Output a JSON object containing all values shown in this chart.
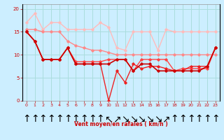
{
  "background_color": "#cceeff",
  "grid_color": "#aadddd",
  "xlabel": "Vent moyen/en rafales ( km/h )",
  "xlabel_color": "#cc0000",
  "xlim": [
    -0.5,
    23.5
  ],
  "ylim": [
    0,
    21
  ],
  "yticks": [
    0,
    5,
    10,
    15,
    20
  ],
  "xticks": [
    0,
    1,
    2,
    3,
    4,
    5,
    6,
    7,
    8,
    9,
    10,
    11,
    12,
    13,
    14,
    15,
    16,
    17,
    18,
    19,
    20,
    21,
    22,
    23
  ],
  "series": [
    {
      "x": [
        0,
        1,
        2,
        3,
        4,
        5,
        6,
        7,
        8,
        9,
        10,
        11,
        12,
        13,
        14,
        15,
        16,
        17,
        18,
        19,
        20,
        21,
        22,
        23
      ],
      "y": [
        17,
        19,
        15.5,
        17,
        17,
        15.5,
        15.5,
        15.5,
        15.5,
        17,
        16,
        11.5,
        11,
        15,
        15,
        15,
        11,
        15.5,
        15,
        15,
        15,
        15,
        15,
        15
      ],
      "color": "#ffbbbb",
      "lw": 1.0,
      "marker": "D",
      "ms": 1.8
    },
    {
      "x": [
        0,
        1,
        2,
        3,
        4,
        5,
        6,
        7,
        8,
        9,
        10,
        11,
        12,
        13,
        14,
        15,
        16,
        17,
        18,
        19,
        20,
        21,
        22,
        23
      ],
      "y": [
        15.5,
        15.5,
        15,
        15,
        15,
        13,
        12,
        11.5,
        11,
        11,
        10.5,
        10,
        10,
        10,
        10,
        10,
        10,
        10,
        10,
        10,
        10,
        10,
        10,
        10
      ],
      "color": "#ff8888",
      "lw": 1.0,
      "marker": "D",
      "ms": 1.8
    },
    {
      "x": [
        0,
        1,
        2,
        3,
        4,
        5,
        6,
        7,
        8,
        9,
        10,
        11,
        12,
        13,
        14,
        15,
        16,
        17,
        18,
        19,
        20,
        21,
        22,
        23
      ],
      "y": [
        15,
        13,
        9,
        9,
        9,
        11.5,
        8.5,
        8.5,
        8.5,
        8.5,
        9,
        9,
        9,
        6.5,
        9,
        9,
        9,
        9,
        6.5,
        7,
        7,
        7,
        7,
        11.5
      ],
      "color": "#ff4444",
      "lw": 1.0,
      "marker": "D",
      "ms": 1.8
    },
    {
      "x": [
        0,
        1,
        2,
        3,
        4,
        5,
        6,
        7,
        8,
        9,
        10,
        11,
        12,
        13,
        14,
        15,
        16,
        17,
        18,
        19,
        20,
        21,
        22,
        23
      ],
      "y": [
        15,
        13,
        9,
        9,
        9,
        11.5,
        8,
        8,
        8,
        8,
        0,
        6.5,
        4,
        8,
        7,
        7.5,
        7.5,
        7,
        6.5,
        6.5,
        7.5,
        7.5,
        7.5,
        11.5
      ],
      "color": "#ee2222",
      "lw": 1.0,
      "marker": "D",
      "ms": 1.8
    },
    {
      "x": [
        0,
        1,
        2,
        3,
        4,
        5,
        6,
        7,
        8,
        9,
        10,
        11,
        12,
        13,
        14,
        15,
        16,
        17,
        18,
        19,
        20,
        21,
        22,
        23
      ],
      "y": [
        15,
        13,
        9,
        9,
        9,
        11.5,
        8,
        8,
        8,
        8,
        8,
        9,
        9,
        6.5,
        8,
        8,
        6.5,
        6.5,
        6.5,
        6.5,
        6.5,
        6.5,
        7.5,
        11.5
      ],
      "color": "#cc0000",
      "lw": 1.2,
      "marker": "D",
      "ms": 1.8
    }
  ],
  "arrows": [
    "↑",
    "↑",
    "↑",
    "↑",
    "↑",
    "↑",
    "↑",
    "↑",
    "↑",
    "↑",
    "↖",
    "↗",
    "↘",
    "↘",
    "↘",
    "↘",
    "↘",
    "↗",
    "↑",
    "↑",
    "↑",
    "↑",
    "↑",
    "↑"
  ],
  "arrow_color": "#cc0000"
}
